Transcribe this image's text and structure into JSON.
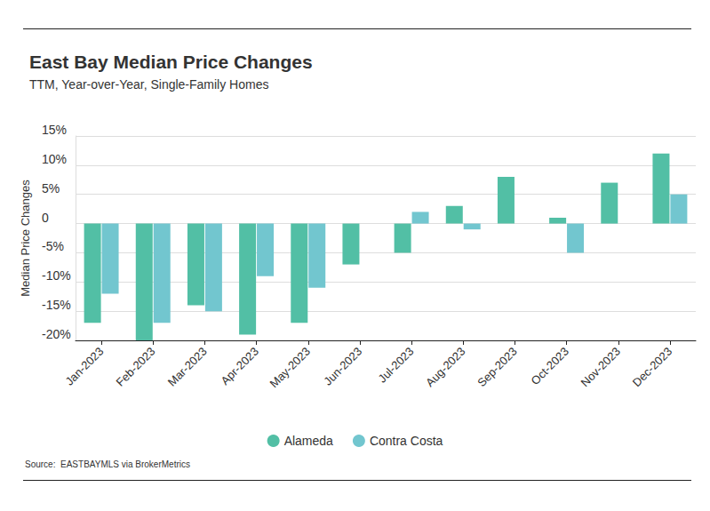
{
  "chart_data": {
    "type": "bar",
    "title": "East Bay Median Price Changes",
    "subtitle": "TTM, Year-over-Year, Single-Family Homes",
    "y_label": "Median Price Changes",
    "source": "Source:  EASTBAYMLS via BrokerMetrics",
    "categories": [
      "Jan-2023",
      "Feb-2023",
      "Mar-2023",
      "Apr-2023",
      "May-2023",
      "Jun-2023",
      "Jul-2023",
      "Aug-2023",
      "Sep-2023",
      "Oct-2023",
      "Nov-2023",
      "Dec-2023"
    ],
    "series": [
      {
        "name": "Alameda",
        "color": "#52bfa5",
        "values": [
          -17,
          -20,
          -14,
          -19,
          -17,
          -7,
          -5,
          3,
          8,
          1,
          7,
          12
        ]
      },
      {
        "name": "Contra Costa",
        "color": "#72c6cf",
        "values": [
          -12,
          -17,
          -15,
          -9,
          -11,
          null,
          2,
          -1,
          null,
          -5,
          null,
          5
        ]
      }
    ],
    "ylim": [
      -20,
      15
    ],
    "yticks": [
      {
        "value": -20,
        "label": "-20%"
      },
      {
        "value": -15,
        "label": "-15%"
      },
      {
        "value": -10,
        "label": "-10%"
      },
      {
        "value": -5,
        "label": "-5%"
      },
      0,
      {
        "value": 5,
        "label": "5%"
      },
      {
        "value": 10,
        "label": "10%"
      },
      {
        "value": 15,
        "label": "15%"
      }
    ],
    "grid": true,
    "legend": "bottom"
  }
}
